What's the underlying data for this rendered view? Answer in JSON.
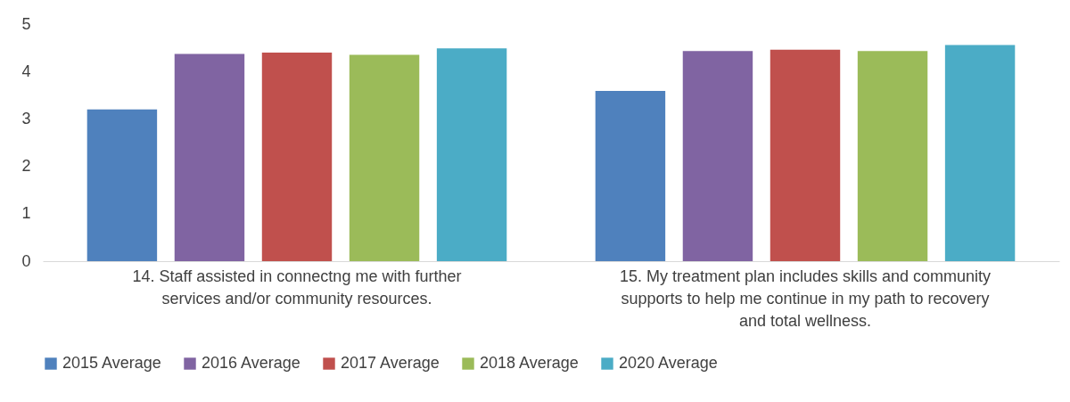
{
  "chart_data": {
    "type": "bar",
    "categories": [
      "14. Staff assisted in connectng me with further services and/or community resources.",
      "15. My treatment plan includes skills and community supports to help me continue in my path to recovery and total wellness."
    ],
    "series": [
      {
        "name": "2015 Average",
        "color": "#4f81bd",
        "values": [
          3.2,
          3.59
        ]
      },
      {
        "name": "2016 Average",
        "color": "#8064a2",
        "values": [
          4.37,
          4.43
        ]
      },
      {
        "name": "2017 Average",
        "color": "#c0504d",
        "values": [
          4.4,
          4.46
        ]
      },
      {
        "name": "2018 Average",
        "color": "#9bbb59",
        "values": [
          4.35,
          4.43
        ]
      },
      {
        "name": "2020 Average",
        "color": "#4bacc6",
        "values": [
          4.49,
          4.56
        ]
      }
    ],
    "ylim": [
      0,
      5
    ],
    "yticks": [
      0,
      1,
      2,
      3,
      4,
      5
    ],
    "grid": false,
    "legend": "bottom"
  }
}
